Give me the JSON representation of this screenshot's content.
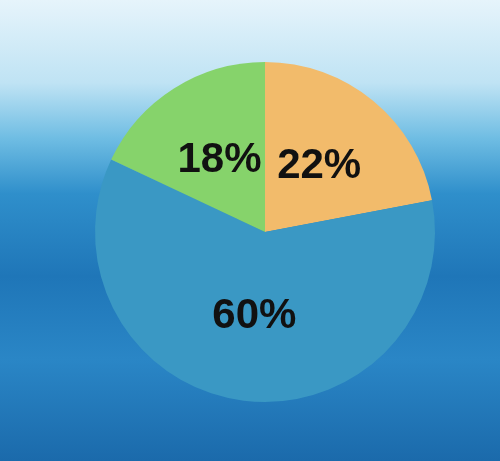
{
  "chart_data": {
    "type": "pie",
    "values": [
      22,
      60,
      18
    ],
    "value_labels": [
      "22%",
      "60%",
      "18%"
    ],
    "colors": [
      "#f2bb6b",
      "#3a98c4",
      "#86d36b"
    ],
    "data_labels": true
  }
}
